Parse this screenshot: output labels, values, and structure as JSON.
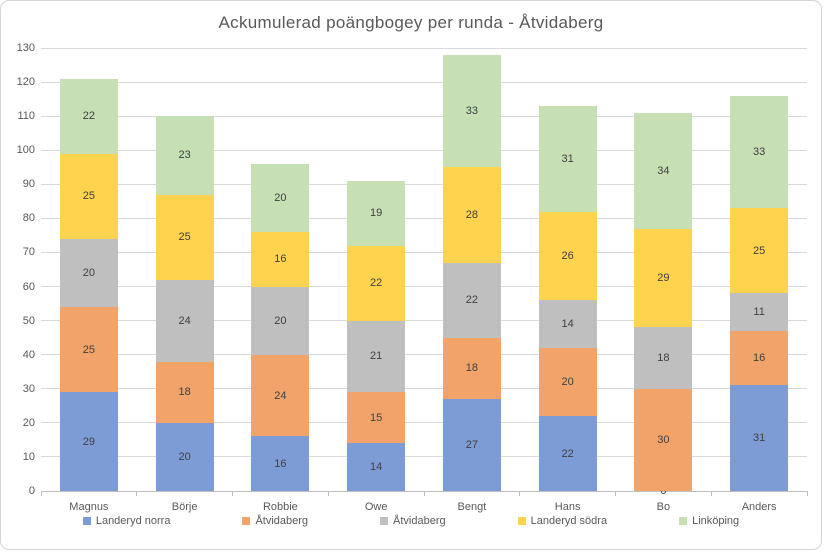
{
  "chart_data": {
    "type": "bar",
    "stacked": true,
    "title": "Ackumulerad poängbogey per runda - Åtvidaberg",
    "categories": [
      "Magnus",
      "Börje",
      "Robbie",
      "Owe",
      "Bengt",
      "Hans",
      "Bo",
      "Anders"
    ],
    "series": [
      {
        "name": "Landeryd norra",
        "color": "#7d9bd5",
        "values": [
          29,
          20,
          16,
          14,
          27,
          22,
          0,
          31
        ]
      },
      {
        "name": "Åtvidaberg",
        "color": "#f2a369",
        "values": [
          25,
          18,
          24,
          15,
          18,
          20,
          30,
          16
        ]
      },
      {
        "name": "Åtvidaberg",
        "color": "#bfbfbf",
        "values": [
          20,
          24,
          20,
          21,
          22,
          14,
          18,
          11
        ]
      },
      {
        "name": "Landeryd södra",
        "color": "#ffd34e",
        "values": [
          25,
          25,
          16,
          22,
          28,
          26,
          29,
          25
        ]
      },
      {
        "name": "Linköping",
        "color": "#c6e0b4",
        "values": [
          22,
          23,
          20,
          19,
          33,
          31,
          34,
          33
        ]
      }
    ],
    "totals": [
      121,
      110,
      96,
      91,
      128,
      113,
      111,
      116
    ],
    "xlabel": "",
    "ylabel": "",
    "ylim": [
      0,
      130
    ],
    "ytick_step": 10,
    "ytick_labels": [
      "0",
      "10",
      "20",
      "30",
      "40",
      "50",
      "60",
      "70",
      "80",
      "90",
      "100",
      "110",
      "120",
      "130"
    ],
    "grid": true,
    "data_labels": true,
    "legend_position": "bottom",
    "appearance": {
      "title_color": "#595959",
      "axis_label_color": "#595959",
      "data_label_color": "#404040",
      "gridline_color": "#d9d9d9",
      "axis_line_color": "#bfbfbf",
      "background": "#ffffff"
    }
  }
}
